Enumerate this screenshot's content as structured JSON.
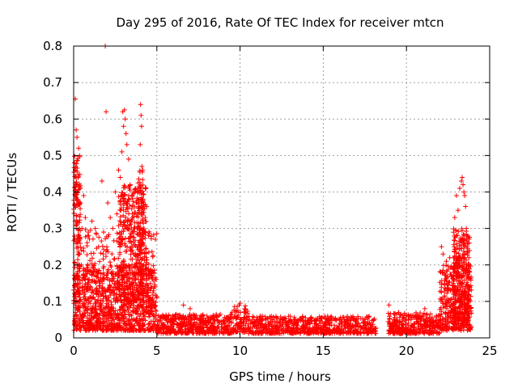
{
  "chart_data": {
    "type": "scatter",
    "title": "Day 295 of 2016, Rate Of TEC Index for receiver mtcn",
    "xlabel": "GPS time / hours",
    "ylabel": "ROTI / TECUs",
    "xlim": [
      0,
      25
    ],
    "ylim": [
      0,
      0.8
    ],
    "grid": true,
    "marker": "+",
    "xticks": [
      {
        "value": 0,
        "label": "0"
      },
      {
        "value": 5,
        "label": "5"
      },
      {
        "value": 10,
        "label": "10"
      },
      {
        "value": 15,
        "label": "15"
      },
      {
        "value": 20,
        "label": "20"
      },
      {
        "value": 25,
        "label": "25"
      }
    ],
    "yticks": [
      {
        "value": 0,
        "label": "0"
      },
      {
        "value": 0.1,
        "label": "0.1"
      },
      {
        "value": 0.2,
        "label": "0.2"
      },
      {
        "value": 0.3,
        "label": "0.3"
      },
      {
        "value": 0.4,
        "label": "0.4"
      },
      {
        "value": 0.5,
        "label": "0.5"
      },
      {
        "value": 0.6,
        "label": "0.6"
      },
      {
        "value": 0.7,
        "label": "0.7"
      },
      {
        "value": 0.8,
        "label": "0.8"
      }
    ],
    "series": [
      {
        "name": "ROTI",
        "color": "#ff0000",
        "points": [
          [
            0.05,
            0.48
          ],
          [
            0.1,
            0.655
          ],
          [
            0.15,
            0.57
          ],
          [
            0.2,
            0.55
          ],
          [
            0.25,
            0.4
          ],
          [
            0.3,
            0.52
          ],
          [
            0.1,
            0.39
          ],
          [
            0.4,
            0.37
          ],
          [
            0.5,
            0.3
          ],
          [
            0.2,
            0.27
          ],
          [
            0.6,
            0.39
          ],
          [
            0.7,
            0.33
          ],
          [
            0.9,
            0.28
          ],
          [
            1.1,
            0.32
          ],
          [
            1.3,
            0.3
          ],
          [
            1.5,
            0.25
          ],
          [
            1.7,
            0.43
          ],
          [
            1.8,
            0.29
          ],
          [
            1.9,
            0.8
          ],
          [
            1.95,
            0.62
          ],
          [
            2.05,
            0.37
          ],
          [
            2.2,
            0.33
          ],
          [
            2.35,
            0.3
          ],
          [
            2.5,
            0.4
          ],
          [
            2.6,
            0.34
          ],
          [
            2.7,
            0.46
          ],
          [
            2.8,
            0.44
          ],
          [
            2.9,
            0.51
          ],
          [
            2.95,
            0.62
          ],
          [
            3.0,
            0.58
          ],
          [
            3.05,
            0.625
          ],
          [
            3.1,
            0.6
          ],
          [
            3.15,
            0.56
          ],
          [
            3.2,
            0.53
          ],
          [
            3.3,
            0.49
          ],
          [
            3.4,
            0.42
          ],
          [
            3.5,
            0.39
          ],
          [
            3.6,
            0.4
          ],
          [
            3.7,
            0.4
          ],
          [
            3.8,
            0.37
          ],
          [
            3.9,
            0.36
          ],
          [
            4.0,
            0.53
          ],
          [
            4.02,
            0.64
          ],
          [
            4.05,
            0.61
          ],
          [
            4.08,
            0.58
          ],
          [
            4.1,
            0.47
          ],
          [
            4.15,
            0.46
          ],
          [
            4.3,
            0.33
          ],
          [
            4.5,
            0.28
          ],
          [
            4.7,
            0.18
          ],
          [
            4.9,
            0.14
          ],
          [
            5.0,
            0.11
          ],
          [
            22.1,
            0.25
          ],
          [
            22.2,
            0.23
          ],
          [
            22.4,
            0.21
          ],
          [
            22.6,
            0.22
          ],
          [
            22.8,
            0.19
          ],
          [
            22.9,
            0.33
          ],
          [
            23.0,
            0.39
          ],
          [
            23.1,
            0.35
          ],
          [
            23.2,
            0.41
          ],
          [
            23.3,
            0.43
          ],
          [
            23.35,
            0.44
          ],
          [
            23.4,
            0.42
          ],
          [
            23.45,
            0.4
          ],
          [
            23.5,
            0.39
          ],
          [
            23.55,
            0.36
          ],
          [
            23.6,
            0.3
          ],
          [
            23.7,
            0.26
          ],
          [
            23.75,
            0.22
          ],
          [
            23.8,
            0.18
          ],
          [
            9.95,
            0.09
          ],
          [
            10.0,
            0.095
          ],
          [
            18.95,
            0.09
          ],
          [
            21.1,
            0.08
          ],
          [
            6.6,
            0.09
          ],
          [
            7.0,
            0.08
          ]
        ],
        "bands": [
          {
            "x": [
              0,
              5
            ],
            "y": [
              0.02,
              0.2
            ],
            "n": 900,
            "skew": 1.6
          },
          {
            "x": [
              0,
              5
            ],
            "y": [
              0.05,
              0.3
            ],
            "n": 300,
            "skew": 1.2
          },
          {
            "x": [
              0,
              0.4
            ],
            "y": [
              0.1,
              0.5
            ],
            "n": 120,
            "skew": 1.0
          },
          {
            "x": [
              2.7,
              4.4
            ],
            "y": [
              0.1,
              0.42
            ],
            "n": 320,
            "skew": 1.0
          },
          {
            "x": [
              3.8,
              4.2
            ],
            "y": [
              0.2,
              0.46
            ],
            "n": 70,
            "skew": 1.0
          },
          {
            "x": [
              5,
              9.5
            ],
            "y": [
              0.012,
              0.065
            ],
            "n": 500,
            "skew": 1.5
          },
          {
            "x": [
              9.5,
              10.5
            ],
            "y": [
              0.015,
              0.09
            ],
            "n": 90,
            "skew": 1.4
          },
          {
            "x": [
              10.5,
              18.2
            ],
            "y": [
              0.012,
              0.06
            ],
            "n": 700,
            "skew": 1.6
          },
          {
            "x": [
              18.9,
              22.0
            ],
            "y": [
              0.012,
              0.07
            ],
            "n": 380,
            "skew": 1.7
          },
          {
            "x": [
              22.0,
              23.9
            ],
            "y": [
              0.02,
              0.2
            ],
            "n": 420,
            "skew": 1.4
          },
          {
            "x": [
              22.8,
              23.8
            ],
            "y": [
              0.05,
              0.3
            ],
            "n": 220,
            "skew": 1.0
          }
        ]
      }
    ]
  }
}
